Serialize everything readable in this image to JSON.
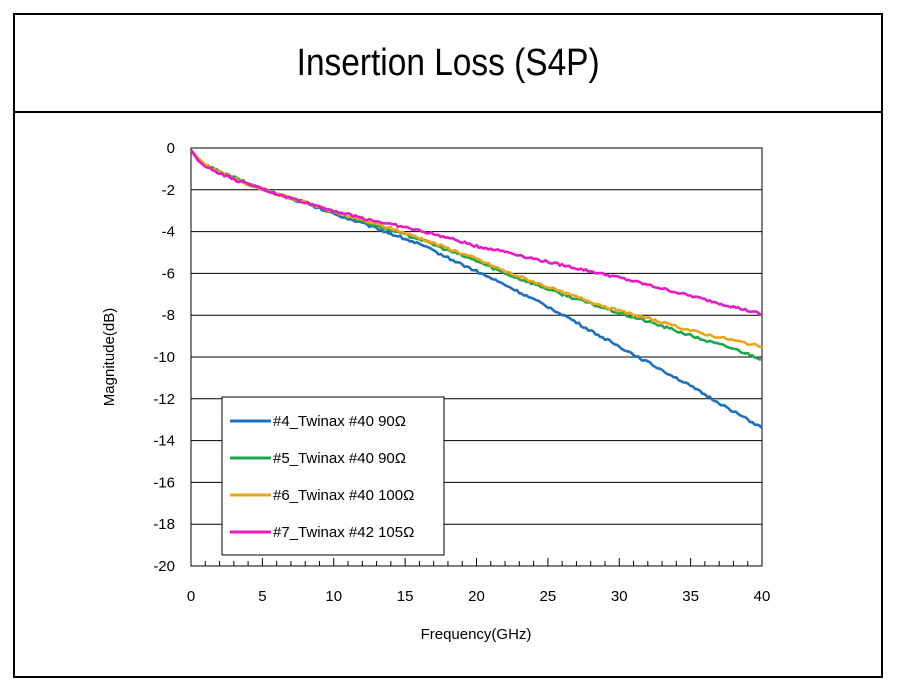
{
  "chart_data": {
    "type": "line",
    "title": "Insertion Loss (S4P)",
    "xlabel": "Frequency(GHz)",
    "ylabel": "Magnitude(dB)",
    "xlim": [
      0,
      40
    ],
    "ylim": [
      -20,
      0
    ],
    "x_ticks": [
      0,
      5,
      10,
      15,
      20,
      25,
      30,
      35,
      40
    ],
    "y_ticks": [
      0,
      -2,
      -4,
      -6,
      -8,
      -10,
      -12,
      -14,
      -16,
      -18,
      -20
    ],
    "x_tick_labels": [
      "0",
      "5",
      "10",
      "15",
      "20",
      "25",
      "30",
      "35",
      "40"
    ],
    "y_tick_labels": [
      "0",
      "-2",
      "-4",
      "-6",
      "-8",
      "-10",
      "-12",
      "-14",
      "-16",
      "-18",
      "-20"
    ],
    "grid": "horizontal",
    "legend_position": "bottom-left",
    "x": [
      0,
      0.5,
      1,
      2,
      3,
      4,
      5,
      6,
      8,
      10,
      12,
      14,
      16,
      18,
      20,
      22,
      24,
      26,
      28,
      30,
      32,
      34,
      36,
      38,
      40
    ],
    "series": [
      {
        "name": "#4_Twinax #40 90Ω",
        "color": "#1f6fbf",
        "values": [
          -0.1,
          -0.5,
          -0.8,
          -1.15,
          -1.45,
          -1.75,
          -1.95,
          -2.2,
          -2.65,
          -3.15,
          -3.6,
          -4.1,
          -4.6,
          -5.25,
          -5.9,
          -6.55,
          -7.25,
          -7.95,
          -8.75,
          -9.5,
          -10.25,
          -11.0,
          -11.8,
          -12.6,
          -13.4
        ]
      },
      {
        "name": "#5_Twinax #40 90Ω",
        "color": "#1fa64a",
        "values": [
          -0.1,
          -0.5,
          -0.8,
          -1.15,
          -1.4,
          -1.7,
          -1.95,
          -2.2,
          -2.6,
          -3.05,
          -3.5,
          -3.95,
          -4.35,
          -4.9,
          -5.4,
          -6.0,
          -6.5,
          -7.0,
          -7.45,
          -7.9,
          -8.3,
          -8.75,
          -9.2,
          -9.6,
          -10.1
        ]
      },
      {
        "name": "#6_Twinax #40 100Ω",
        "color": "#e8a41c",
        "values": [
          -0.1,
          -0.5,
          -0.8,
          -1.15,
          -1.45,
          -1.75,
          -1.95,
          -2.2,
          -2.6,
          -3.05,
          -3.45,
          -3.85,
          -4.3,
          -4.8,
          -5.3,
          -5.9,
          -6.4,
          -6.9,
          -7.35,
          -7.8,
          -8.15,
          -8.55,
          -8.9,
          -9.2,
          -9.5
        ]
      },
      {
        "name": "#7_Twinax #42 105Ω",
        "color": "#e81ac3",
        "values": [
          -0.1,
          -0.6,
          -0.9,
          -1.2,
          -1.5,
          -1.75,
          -1.95,
          -2.2,
          -2.6,
          -3.0,
          -3.35,
          -3.65,
          -3.95,
          -4.3,
          -4.7,
          -4.95,
          -5.3,
          -5.6,
          -5.9,
          -6.2,
          -6.55,
          -6.9,
          -7.25,
          -7.6,
          -7.95
        ]
      }
    ]
  }
}
